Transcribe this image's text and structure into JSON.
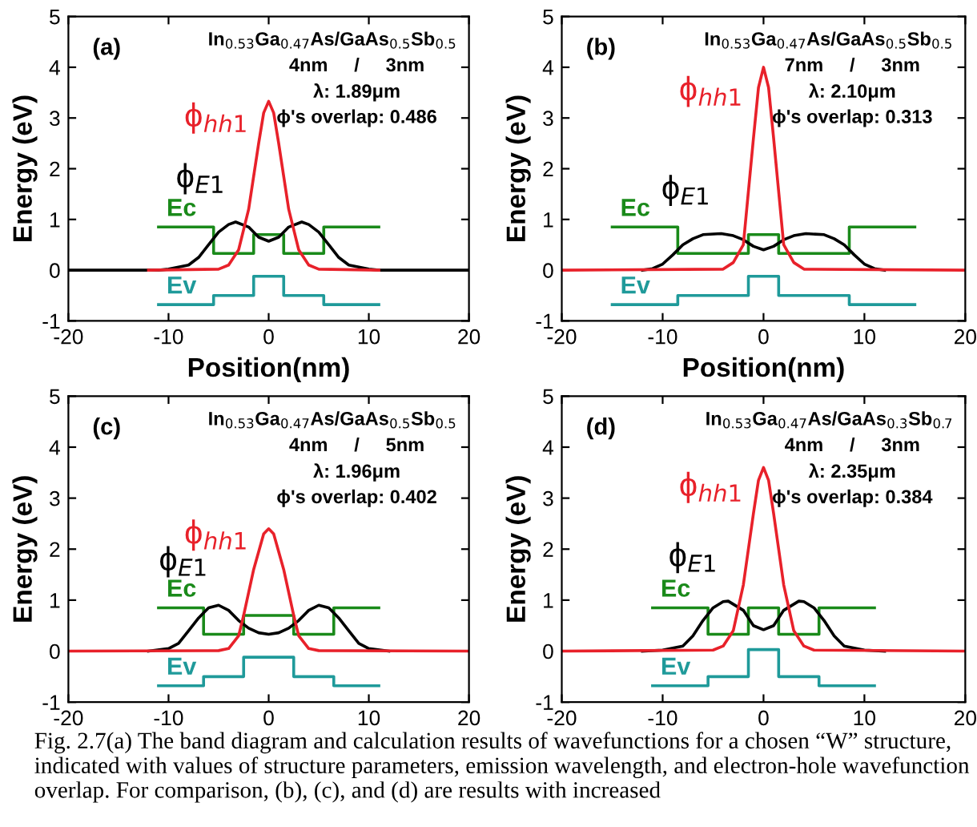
{
  "chart_data": [
    {
      "type": "line",
      "xlabel": "Position(nm)",
      "ylabel": "Energy (eV)",
      "xlim": [
        -20,
        20
      ],
      "ylim": [
        -1,
        5
      ],
      "xticks": [
        -20,
        -10,
        0,
        10,
        20
      ],
      "yticks": [
        -1,
        0,
        1,
        2,
        3,
        4,
        5
      ],
      "grid": false,
      "legend": false,
      "annotations": [
        "(a)",
        "In$_{0.53}$Ga$_{0.47}$As/GaAs$_{0.5}$Sb$_{0.5}$",
        "4nm     /     3nm",
        "λ: 1.89μm",
        "ϕ's overlap: 0.486"
      ],
      "series": [
        {
          "name": "Ec",
          "type": "step",
          "color": "#1a8a1a",
          "x": [
            -11,
            -5.5,
            -1.5,
            1.5,
            5.5,
            11
          ],
          "values": [
            0.85,
            0.33,
            0.7,
            0.33,
            0.85,
            0.85
          ]
        },
        {
          "name": "Ev",
          "type": "step",
          "color": "#1f9a9a",
          "x": [
            -11,
            -5.5,
            -1.5,
            1.5,
            5.5,
            11
          ],
          "values": [
            -0.68,
            -0.5,
            -0.12,
            -0.5,
            -0.68,
            -0.68
          ]
        },
        {
          "name": "ϕ$_{E1}$",
          "type": "line",
          "color": "#000000",
          "x": [
            -20,
            -11,
            -10,
            -8,
            -7,
            -6,
            -5,
            -4,
            -3.3,
            -2,
            -1,
            0,
            1,
            2,
            3.3,
            4,
            5,
            6,
            7,
            8,
            10,
            11,
            20
          ],
          "values": [
            0,
            0,
            0.02,
            0.1,
            0.25,
            0.5,
            0.75,
            0.9,
            0.95,
            0.85,
            0.65,
            0.57,
            0.65,
            0.85,
            0.95,
            0.9,
            0.75,
            0.5,
            0.25,
            0.1,
            0.02,
            0,
            0
          ]
        },
        {
          "name": "ϕ$_{hh1}$",
          "type": "line",
          "color": "#e8212a",
          "x": [
            -12,
            -5,
            -4,
            -3,
            -2,
            -1,
            -0.5,
            0,
            0.5,
            1,
            2,
            3,
            4,
            5,
            11
          ],
          "values": [
            0,
            0.02,
            0.1,
            0.4,
            1.2,
            2.5,
            3.1,
            3.33,
            3.1,
            2.5,
            1.2,
            0.4,
            0.1,
            0.02,
            0
          ]
        }
      ]
    },
    {
      "type": "line",
      "xlabel": "Position(nm)",
      "ylabel": "Energy (eV)",
      "xlim": [
        -20,
        20
      ],
      "ylim": [
        -1,
        5
      ],
      "xticks": [
        -20,
        -10,
        0,
        10,
        20
      ],
      "yticks": [
        -1,
        0,
        1,
        2,
        3,
        4,
        5
      ],
      "grid": false,
      "legend": false,
      "annotations": [
        "(b)",
        "In$_{0.53}$Ga$_{0.47}$As/GaAs$_{0.5}$Sb$_{0.5}$",
        "7nm     /     3nm",
        "λ: 2.10μm",
        "ϕ's overlap: 0.313"
      ],
      "series": [
        {
          "name": "Ec",
          "type": "step",
          "color": "#1a8a1a",
          "x": [
            -15,
            -8.5,
            -1.5,
            1.5,
            8.5,
            15
          ],
          "values": [
            0.85,
            0.33,
            0.7,
            0.33,
            0.85,
            0.85
          ]
        },
        {
          "name": "Ev",
          "type": "step",
          "color": "#1f9a9a",
          "x": [
            -15,
            -8.5,
            -1.5,
            1.5,
            8.5,
            15
          ],
          "values": [
            -0.68,
            -0.5,
            -0.12,
            -0.5,
            -0.68,
            -0.68
          ]
        },
        {
          "name": "ϕ$_{E1}$",
          "type": "line",
          "color": "#000000",
          "x": [
            -12,
            -11,
            -10,
            -9,
            -8,
            -7,
            -6,
            -4.2,
            -3,
            -2,
            -1,
            0,
            1,
            2,
            3,
            4.2,
            6,
            7,
            8,
            9,
            10,
            11,
            12
          ],
          "values": [
            0,
            0.03,
            0.12,
            0.3,
            0.5,
            0.62,
            0.7,
            0.72,
            0.68,
            0.6,
            0.47,
            0.4,
            0.47,
            0.6,
            0.68,
            0.72,
            0.7,
            0.62,
            0.5,
            0.3,
            0.12,
            0.03,
            0
          ]
        },
        {
          "name": "ϕ$_{hh1}$",
          "type": "line",
          "color": "#e8212a",
          "x": [
            -20,
            -4,
            -3,
            -2,
            -1,
            -0.5,
            0,
            0.5,
            1,
            2,
            3,
            4,
            20
          ],
          "values": [
            0,
            0.02,
            0.15,
            0.5,
            2.6,
            3.6,
            4.0,
            3.6,
            2.6,
            0.5,
            0.15,
            0.02,
            0
          ]
        }
      ]
    },
    {
      "type": "line",
      "ylabel": "Energy (eV)",
      "xlim": [
        -20,
        20
      ],
      "ylim": [
        -1,
        5
      ],
      "xticks": [
        -20,
        -10,
        0,
        10,
        20
      ],
      "yticks": [
        -1,
        0,
        1,
        2,
        3,
        4,
        5
      ],
      "grid": false,
      "legend": false,
      "annotations": [
        "(c)",
        "In$_{0.53}$Ga$_{0.47}$As/GaAs$_{0.5}$Sb$_{0.5}$",
        "4nm     /     5nm",
        "λ: 1.96μm",
        "ϕ's overlap: 0.402"
      ],
      "series": [
        {
          "name": "Ec",
          "type": "step",
          "color": "#1a8a1a",
          "x": [
            -11,
            -6.5,
            -2.5,
            2.5,
            6.5,
            11
          ],
          "values": [
            0.85,
            0.33,
            0.7,
            0.33,
            0.85,
            0.85
          ]
        },
        {
          "name": "Ev",
          "type": "step",
          "color": "#1f9a9a",
          "x": [
            -11,
            -6.5,
            -2.5,
            2.5,
            6.5,
            11
          ],
          "values": [
            -0.68,
            -0.5,
            -0.12,
            -0.5,
            -0.68,
            -0.68
          ]
        },
        {
          "name": "ϕ$_{E1}$",
          "type": "line",
          "color": "#000000",
          "x": [
            -12,
            -10,
            -9,
            -8,
            -7,
            -6,
            -5,
            -4,
            -3,
            -2,
            -1,
            0,
            1,
            2,
            3,
            4,
            5,
            6,
            7,
            8,
            9,
            10,
            12
          ],
          "values": [
            0,
            0.05,
            0.15,
            0.4,
            0.65,
            0.85,
            0.9,
            0.8,
            0.6,
            0.45,
            0.36,
            0.33,
            0.36,
            0.45,
            0.6,
            0.8,
            0.9,
            0.85,
            0.65,
            0.4,
            0.15,
            0.05,
            0
          ]
        },
        {
          "name": "ϕ$_{hh1}$",
          "type": "line",
          "color": "#e8212a",
          "x": [
            -20,
            -5,
            -4,
            -3,
            -2.5,
            -1.5,
            -0.5,
            0,
            0.5,
            1.5,
            2.5,
            3,
            4,
            5,
            20
          ],
          "values": [
            0,
            0.01,
            0.05,
            0.3,
            0.7,
            1.6,
            2.3,
            2.4,
            2.3,
            1.6,
            0.7,
            0.3,
            0.05,
            0.01,
            0
          ]
        }
      ]
    },
    {
      "type": "line",
      "ylabel": "Energy (eV)",
      "xlim": [
        -20,
        20
      ],
      "ylim": [
        -1,
        5
      ],
      "xticks": [
        -20,
        -10,
        0,
        10,
        20
      ],
      "yticks": [
        -1,
        0,
        1,
        2,
        3,
        4,
        5
      ],
      "grid": false,
      "legend": false,
      "annotations": [
        "(d)",
        "In$_{0.53}$Ga$_{0.47}$As/GaAs$_{0.3}$Sb$_{0.7}$",
        "4nm     /     3nm",
        "λ: 2.35μm",
        "ϕ's overlap: 0.384",
        "Fig. 2.7(a) The band diagram and calculation results of wavefunctions for a chosen “W” structure, indicated with values of structure parameters, emission wavelength, and electron-hole wavefunction overlap. For comparison, (b), (c), and (d) are results with increased"
      ],
      "series": [
        {
          "name": "Ec",
          "type": "step",
          "color": "#1a8a1a",
          "x": [
            -11,
            -5.5,
            -1.5,
            1.5,
            5.5,
            11
          ],
          "values": [
            0.85,
            0.33,
            0.85,
            0.33,
            0.85,
            0.85
          ]
        },
        {
          "name": "Ev",
          "type": "step",
          "color": "#1f9a9a",
          "x": [
            -11,
            -5.5,
            -1.5,
            1.5,
            5.5,
            11
          ],
          "values": [
            -0.68,
            -0.5,
            0.03,
            -0.5,
            -0.68,
            -0.68
          ]
        },
        {
          "name": "ϕ$_{E1}$",
          "type": "line",
          "color": "#000000",
          "x": [
            -12,
            -10,
            -8,
            -7,
            -6,
            -5,
            -4,
            -3.5,
            -2,
            -1,
            0,
            1,
            2,
            3.5,
            4,
            5,
            6,
            7,
            8,
            10,
            12
          ],
          "values": [
            0,
            0.02,
            0.1,
            0.3,
            0.6,
            0.85,
            0.97,
            0.98,
            0.8,
            0.5,
            0.42,
            0.5,
            0.8,
            0.98,
            0.97,
            0.85,
            0.6,
            0.3,
            0.1,
            0.02,
            0
          ]
        },
        {
          "name": "ϕ$_{hh1}$",
          "type": "line",
          "color": "#e8212a",
          "x": [
            -20,
            -5,
            -4,
            -3,
            -2,
            -1,
            -0.5,
            0,
            0.5,
            1,
            2,
            3,
            4,
            5,
            20
          ],
          "values": [
            0,
            0.02,
            0.1,
            0.4,
            1.3,
            2.7,
            3.35,
            3.6,
            3.35,
            2.7,
            1.3,
            0.4,
            0.1,
            0.02,
            0
          ]
        }
      ]
    }
  ]
}
